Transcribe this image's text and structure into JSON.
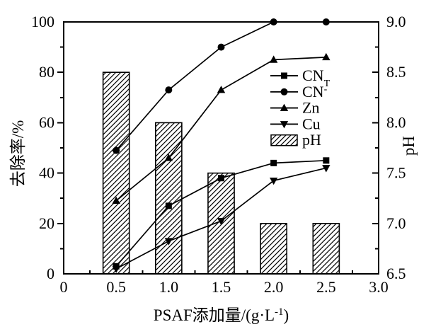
{
  "figure": {
    "background": "#ffffff",
    "foreground": "#000000"
  },
  "chart_data": {
    "type": "line+bar",
    "x_values": [
      0.5,
      1.0,
      1.5,
      2.0,
      2.5
    ],
    "series": [
      {
        "name": "CNT",
        "label_base": "CN",
        "label_sub": "T",
        "marker": "square",
        "axis": "left",
        "values": [
          3,
          27,
          38,
          44,
          45
        ]
      },
      {
        "name": "CN-",
        "label_base": "CN",
        "label_sup": "-",
        "marker": "circle",
        "axis": "left",
        "values": [
          49,
          73,
          90,
          100,
          100
        ]
      },
      {
        "name": "Zn",
        "label_base": "Zn",
        "marker": "triangle-up",
        "axis": "left",
        "values": [
          29,
          46,
          73,
          85,
          86
        ]
      },
      {
        "name": "Cu",
        "label_base": "Cu",
        "marker": "triangle-down",
        "axis": "left",
        "values": [
          2,
          13,
          21,
          37,
          42
        ]
      }
    ],
    "bar_series": {
      "name": "pH",
      "label": "pH",
      "axis": "right",
      "values": [
        8.5,
        8.0,
        7.5,
        7.0,
        7.0
      ],
      "bar_width_x": 0.25,
      "fill": "diagonal-hatch",
      "hatch_direction": "/"
    },
    "xlabel": {
      "prefix": "PSAF添加量/(g·L",
      "sup": "-1",
      "suffix": ")"
    },
    "ylabel_left": "去除率/%",
    "ylabel_right": "pH",
    "xlim": [
      0,
      3.0
    ],
    "ylim_left": [
      0,
      100
    ],
    "ylim_right": [
      6.5,
      9.0
    ],
    "xtick_labels": [
      "0",
      "0.5",
      "1.0",
      "1.5",
      "2.0",
      "2.5",
      "3.0"
    ],
    "xtick_values": [
      0,
      0.5,
      1.0,
      1.5,
      2.0,
      2.5,
      3.0
    ],
    "ytick_left_labels": [
      "0",
      "20",
      "40",
      "60",
      "80",
      "100"
    ],
    "ytick_left_values": [
      0,
      20,
      40,
      60,
      80,
      100
    ],
    "ytick_right_labels": [
      "6.5",
      "7.0",
      "7.5",
      "8.0",
      "8.5",
      "9.0"
    ],
    "ytick_right_values": [
      6.5,
      7.0,
      7.5,
      8.0,
      8.5,
      9.0
    ],
    "minor_tick_step_x": 0.25,
    "minor_tick_step_left": 10,
    "minor_tick_step_right": 0.25,
    "grid": false,
    "legend_position": "center-right-inside",
    "legend_order": [
      "CNT",
      "CN-",
      "Zn",
      "Cu",
      "pH"
    ]
  }
}
